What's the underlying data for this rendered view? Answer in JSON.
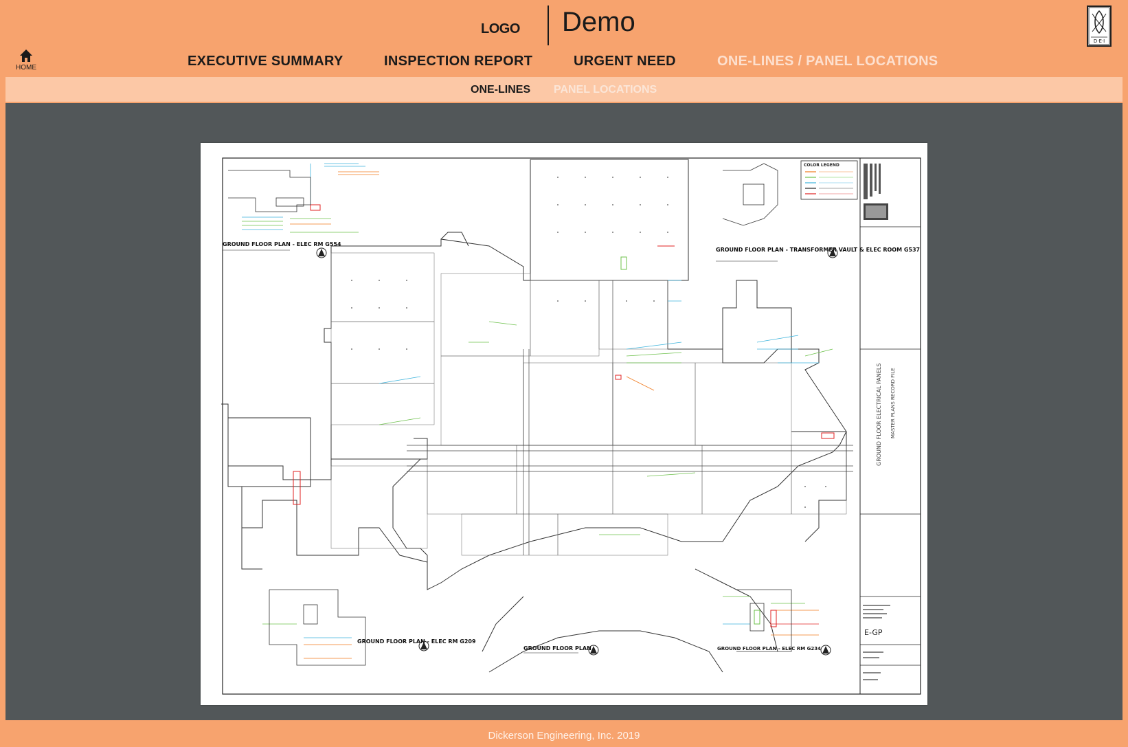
{
  "header": {
    "logo_text": "LOGO",
    "app_title": "Demo",
    "home_label": "HOME"
  },
  "nav": {
    "items": [
      {
        "label": "EXECUTIVE SUMMARY",
        "active": false
      },
      {
        "label": "INSPECTION REPORT",
        "active": false
      },
      {
        "label": "URGENT NEED",
        "active": false
      },
      {
        "label": "ONE-LINES / PANEL LOCATIONS",
        "active": true
      }
    ]
  },
  "subnav": {
    "items": [
      {
        "label": "ONE-LINES",
        "active": false
      },
      {
        "label": "PANEL LOCATIONS",
        "active": true
      }
    ]
  },
  "drawing": {
    "legend_title": "COLOR LEGEND",
    "plan_titles": [
      "GROUND FLOOR PLAN - ELEC RM G554",
      "GROUND FLOOR PLAN - TRANSFORMER VAULT & ELEC ROOM G537",
      "GROUND FLOOR PLAN - ELEC RM G209",
      "GROUND FLOOR PLAN",
      "GROUND FLOOR PLAN - ELEC RM G234"
    ],
    "sheet_name": "GROUND FLOOR ELECTRICAL PANELS",
    "sheet_subtitle": "MASTER PLANS RECORD FILE",
    "sheet_number": "E-GP"
  },
  "colors": {
    "header_bg": "#f7a36e",
    "subnav_bg": "#fcc8a6",
    "viewer_bg": "#525759",
    "active_text": "#fde0cf"
  },
  "footer": {
    "text": "Dickerson Engineering, Inc. 2019"
  }
}
